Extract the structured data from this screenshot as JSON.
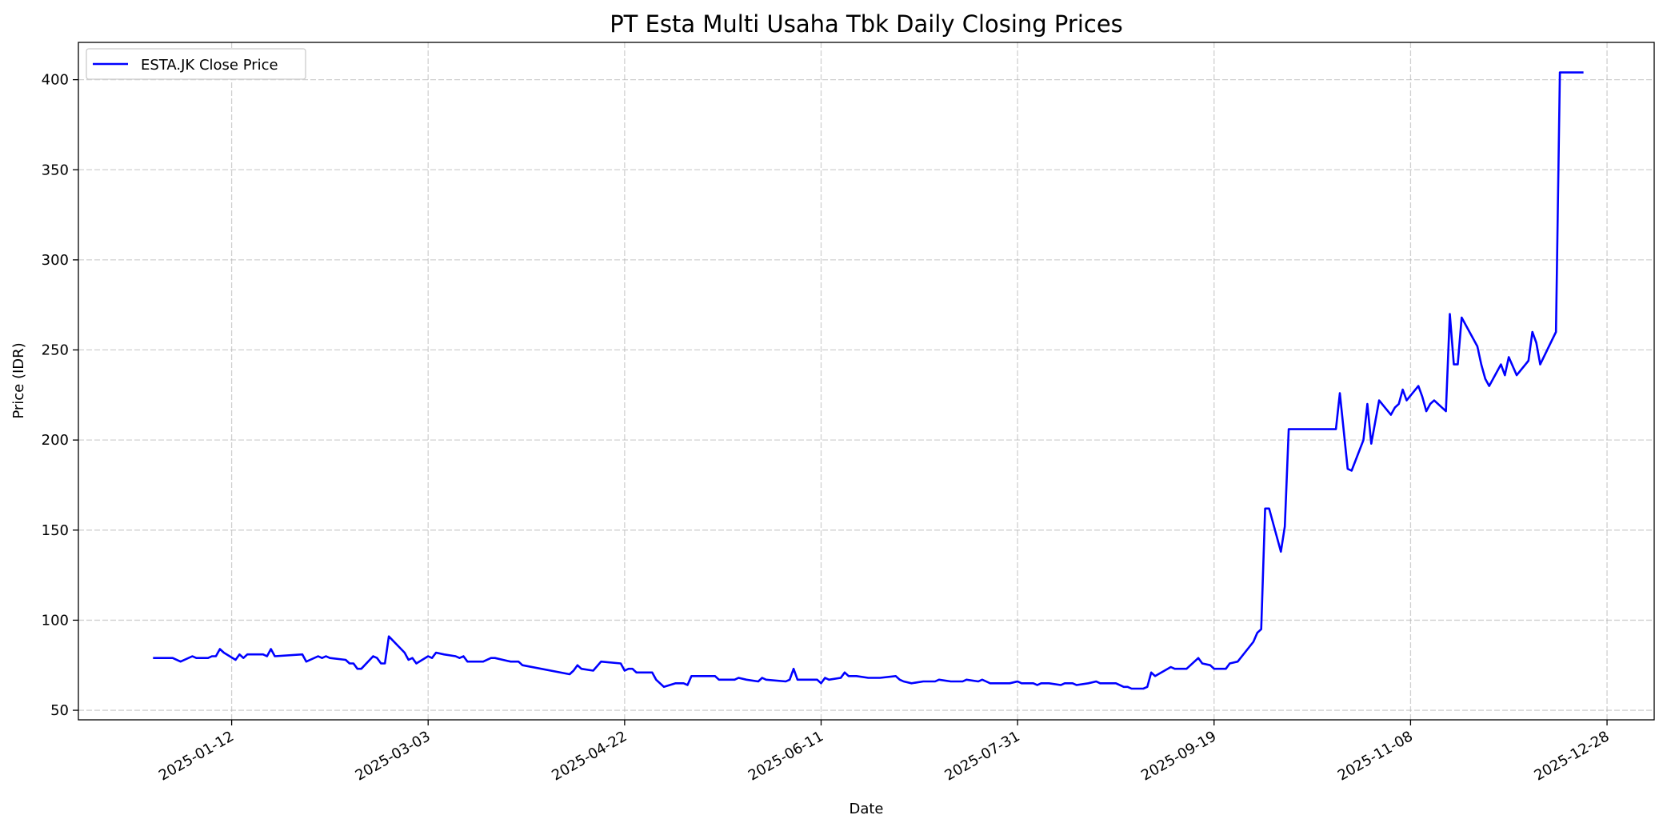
{
  "chart_data": {
    "type": "line",
    "title": "PT Esta Multi Usaha Tbk Daily Closing Prices",
    "xlabel": "Date",
    "ylabel": "Price (IDR)",
    "xlim": [
      "2024-12-04",
      "2026-01-09"
    ],
    "ylim": [
      44.7,
      420.7
    ],
    "x_ticks": [
      "2025-01-12",
      "2025-03-03",
      "2025-04-22",
      "2025-06-11",
      "2025-07-31",
      "2025-09-19",
      "2025-11-08",
      "2025-12-28"
    ],
    "y_ticks": [
      50,
      100,
      150,
      200,
      250,
      300,
      350,
      400
    ],
    "grid": true,
    "legend_position": "top-left",
    "series": [
      {
        "name": "ESTA.JK Close Price",
        "color": "#0000ff",
        "points": [
          [
            "2024-12-23",
            79
          ],
          [
            "2024-12-26",
            79
          ],
          [
            "2024-12-28",
            79
          ],
          [
            "2024-12-30",
            77
          ],
          [
            "2025-01-02",
            80
          ],
          [
            "2025-01-03",
            79
          ],
          [
            "2025-01-06",
            79
          ],
          [
            "2025-01-07",
            80
          ],
          [
            "2025-01-08",
            80
          ],
          [
            "2025-01-09",
            84
          ],
          [
            "2025-01-10",
            82
          ],
          [
            "2025-01-13",
            78
          ],
          [
            "2025-01-14",
            81
          ],
          [
            "2025-01-15",
            79
          ],
          [
            "2025-01-16",
            81
          ],
          [
            "2025-01-20",
            81
          ],
          [
            "2025-01-21",
            80
          ],
          [
            "2025-01-22",
            84
          ],
          [
            "2025-01-23",
            80
          ],
          [
            "2025-01-30",
            81
          ],
          [
            "2025-01-31",
            77
          ],
          [
            "2025-02-03",
            80
          ],
          [
            "2025-02-04",
            79
          ],
          [
            "2025-02-05",
            80
          ],
          [
            "2025-02-06",
            79
          ],
          [
            "2025-02-10",
            78
          ],
          [
            "2025-02-11",
            76
          ],
          [
            "2025-02-12",
            76
          ],
          [
            "2025-02-13",
            73
          ],
          [
            "2025-02-14",
            73
          ],
          [
            "2025-02-17",
            80
          ],
          [
            "2025-02-18",
            79
          ],
          [
            "2025-02-19",
            76
          ],
          [
            "2025-02-20",
            76
          ],
          [
            "2025-02-21",
            91
          ],
          [
            "2025-02-25",
            82
          ],
          [
            "2025-02-26",
            78
          ],
          [
            "2025-02-27",
            79
          ],
          [
            "2025-02-28",
            76
          ],
          [
            "2025-03-03",
            80
          ],
          [
            "2025-03-04",
            79
          ],
          [
            "2025-03-05",
            82
          ],
          [
            "2025-03-07",
            81
          ],
          [
            "2025-03-10",
            80
          ],
          [
            "2025-03-11",
            79
          ],
          [
            "2025-03-12",
            80
          ],
          [
            "2025-03-13",
            77
          ],
          [
            "2025-03-17",
            77
          ],
          [
            "2025-03-19",
            79
          ],
          [
            "2025-03-20",
            79
          ],
          [
            "2025-03-24",
            77
          ],
          [
            "2025-03-26",
            77
          ],
          [
            "2025-03-27",
            75
          ],
          [
            "2025-04-08",
            70
          ],
          [
            "2025-04-09",
            72
          ],
          [
            "2025-04-10",
            75
          ],
          [
            "2025-04-11",
            73
          ],
          [
            "2025-04-14",
            72
          ],
          [
            "2025-04-16",
            77
          ],
          [
            "2025-04-21",
            76
          ],
          [
            "2025-04-22",
            72
          ],
          [
            "2025-04-23",
            73
          ],
          [
            "2025-04-24",
            73
          ],
          [
            "2025-04-25",
            71
          ],
          [
            "2025-04-29",
            71
          ],
          [
            "2025-04-30",
            67
          ],
          [
            "2025-05-02",
            63
          ],
          [
            "2025-05-05",
            65
          ],
          [
            "2025-05-07",
            65
          ],
          [
            "2025-05-08",
            64
          ],
          [
            "2025-05-09",
            69
          ],
          [
            "2025-05-15",
            69
          ],
          [
            "2025-05-16",
            67
          ],
          [
            "2025-05-20",
            67
          ],
          [
            "2025-05-21",
            68
          ],
          [
            "2025-05-23",
            67
          ],
          [
            "2025-05-26",
            66
          ],
          [
            "2025-05-27",
            68
          ],
          [
            "2025-05-28",
            67
          ],
          [
            "2025-06-02",
            66
          ],
          [
            "2025-06-03",
            67
          ],
          [
            "2025-06-04",
            73
          ],
          [
            "2025-06-05",
            67
          ],
          [
            "2025-06-10",
            67
          ],
          [
            "2025-06-11",
            65
          ],
          [
            "2025-06-12",
            68
          ],
          [
            "2025-06-13",
            67
          ],
          [
            "2025-06-16",
            68
          ],
          [
            "2025-06-17",
            71
          ],
          [
            "2025-06-18",
            69
          ],
          [
            "2025-06-20",
            69
          ],
          [
            "2025-06-23",
            68
          ],
          [
            "2025-06-26",
            68
          ],
          [
            "2025-06-30",
            69
          ],
          [
            "2025-07-01",
            67
          ],
          [
            "2025-07-02",
            66
          ],
          [
            "2025-07-04",
            65
          ],
          [
            "2025-07-07",
            66
          ],
          [
            "2025-07-10",
            66
          ],
          [
            "2025-07-11",
            67
          ],
          [
            "2025-07-14",
            66
          ],
          [
            "2025-07-17",
            66
          ],
          [
            "2025-07-18",
            67
          ],
          [
            "2025-07-21",
            66
          ],
          [
            "2025-07-22",
            67
          ],
          [
            "2025-07-23",
            66
          ],
          [
            "2025-07-24",
            65
          ],
          [
            "2025-07-29",
            65
          ],
          [
            "2025-07-31",
            66
          ],
          [
            "2025-08-01",
            65
          ],
          [
            "2025-08-04",
            65
          ],
          [
            "2025-08-05",
            64
          ],
          [
            "2025-08-06",
            65
          ],
          [
            "2025-08-08",
            65
          ],
          [
            "2025-08-11",
            64
          ],
          [
            "2025-08-12",
            65
          ],
          [
            "2025-08-14",
            65
          ],
          [
            "2025-08-15",
            64
          ],
          [
            "2025-08-18",
            65
          ],
          [
            "2025-08-20",
            66
          ],
          [
            "2025-08-21",
            65
          ],
          [
            "2025-08-25",
            65
          ],
          [
            "2025-08-27",
            63
          ],
          [
            "2025-08-28",
            63
          ],
          [
            "2025-08-29",
            62
          ],
          [
            "2025-09-01",
            62
          ],
          [
            "2025-09-02",
            63
          ],
          [
            "2025-09-03",
            71
          ],
          [
            "2025-09-04",
            69
          ],
          [
            "2025-09-08",
            74
          ],
          [
            "2025-09-09",
            73
          ],
          [
            "2025-09-12",
            73
          ],
          [
            "2025-09-15",
            79
          ],
          [
            "2025-09-16",
            76
          ],
          [
            "2025-09-18",
            75
          ],
          [
            "2025-09-19",
            73
          ],
          [
            "2025-09-22",
            73
          ],
          [
            "2025-09-23",
            76
          ],
          [
            "2025-09-25",
            77
          ],
          [
            "2025-09-29",
            88
          ],
          [
            "2025-09-30",
            93
          ],
          [
            "2025-10-01",
            95
          ],
          [
            "2025-10-02",
            162
          ],
          [
            "2025-10-03",
            162
          ],
          [
            "2025-10-06",
            138
          ],
          [
            "2025-10-07",
            152
          ],
          [
            "2025-10-08",
            206
          ],
          [
            "2025-10-20",
            206
          ],
          [
            "2025-10-21",
            226
          ],
          [
            "2025-10-23",
            184
          ],
          [
            "2025-10-24",
            183
          ],
          [
            "2025-10-27",
            200
          ],
          [
            "2025-10-28",
            220
          ],
          [
            "2025-10-29",
            198
          ],
          [
            "2025-10-30",
            210
          ],
          [
            "2025-10-31",
            222
          ],
          [
            "2025-11-03",
            214
          ],
          [
            "2025-11-04",
            218
          ],
          [
            "2025-11-05",
            220
          ],
          [
            "2025-11-06",
            228
          ],
          [
            "2025-11-07",
            222
          ],
          [
            "2025-11-10",
            230
          ],
          [
            "2025-11-11",
            224
          ],
          [
            "2025-11-12",
            216
          ],
          [
            "2025-11-13",
            220
          ],
          [
            "2025-11-14",
            222
          ],
          [
            "2025-11-17",
            216
          ],
          [
            "2025-11-18",
            270
          ],
          [
            "2025-11-19",
            242
          ],
          [
            "2025-11-20",
            242
          ],
          [
            "2025-11-21",
            268
          ],
          [
            "2025-11-25",
            252
          ],
          [
            "2025-11-26",
            242
          ],
          [
            "2025-11-27",
            234
          ],
          [
            "2025-11-28",
            230
          ],
          [
            "2025-12-01",
            242
          ],
          [
            "2025-12-02",
            236
          ],
          [
            "2025-12-03",
            246
          ],
          [
            "2025-12-05",
            236
          ],
          [
            "2025-12-08",
            244
          ],
          [
            "2025-12-09",
            260
          ],
          [
            "2025-12-10",
            254
          ],
          [
            "2025-12-11",
            242
          ],
          [
            "2025-12-15",
            260
          ],
          [
            "2025-12-16",
            404
          ],
          [
            "2025-12-22",
            404
          ]
        ]
      }
    ]
  }
}
